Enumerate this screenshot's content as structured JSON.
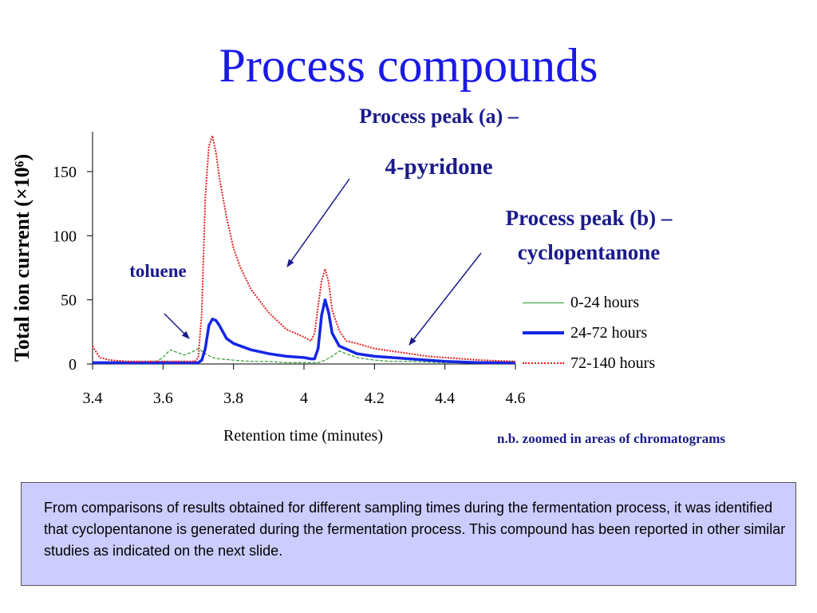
{
  "slide": {
    "title": "Process compounds",
    "note": "n.b. zoomed in areas of chromatograms",
    "info_text": "From comparisons of results obtained for different sampling times during the fermentation process, it was identified that cyclopentanone is generated during the fermentation process. This compound has been reported in other similar studies as indicated on the next slide."
  },
  "chart_data": {
    "type": "line",
    "xlabel": "Retention time (minutes)",
    "ylabel": "Total ion current (×10⁶)",
    "xlim": [
      3.4,
      4.6
    ],
    "ylim": [
      0,
      175
    ],
    "x_ticks": [
      "3.4",
      "3.6",
      "3.8",
      "4",
      "4.2",
      "4.4",
      "4.6"
    ],
    "y_ticks": [
      "0",
      "50",
      "100",
      "150"
    ],
    "grid": false,
    "legend_position": "right",
    "annotations": {
      "peak_a_line1": "Process peak (a) –",
      "peak_a_line2": "4-pyridone",
      "peak_b_line1": "Process peak (b) –",
      "peak_b_line2": "cyclopentanone",
      "toluene": "toluene"
    },
    "series": [
      {
        "name": "0-24 hours",
        "color": "#2e9a2e",
        "x": [
          3.4,
          3.45,
          3.5,
          3.55,
          3.58,
          3.6,
          3.62,
          3.64,
          3.66,
          3.68,
          3.7,
          3.72,
          3.74,
          3.76,
          3.8,
          3.85,
          3.9,
          3.95,
          4.0,
          4.04,
          4.06,
          4.08,
          4.1,
          4.12,
          4.15,
          4.2,
          4.25,
          4.3,
          4.4,
          4.5,
          4.6
        ],
        "y": [
          1,
          1,
          1,
          1,
          2,
          5,
          11,
          9,
          7,
          9,
          12,
          8,
          5,
          4,
          3,
          2,
          2,
          1,
          1,
          1,
          3,
          6,
          10,
          8,
          5,
          3,
          2,
          2,
          1,
          1,
          1
        ]
      },
      {
        "name": "24-72 hours",
        "color": "#1426e6",
        "x": [
          3.4,
          3.5,
          3.6,
          3.68,
          3.7,
          3.71,
          3.72,
          3.73,
          3.74,
          3.75,
          3.76,
          3.78,
          3.8,
          3.85,
          3.9,
          3.95,
          4.0,
          4.02,
          4.03,
          4.04,
          4.05,
          4.06,
          4.07,
          4.08,
          4.1,
          4.15,
          4.2,
          4.3,
          4.4,
          4.5,
          4.6
        ],
        "y": [
          1,
          1,
          1,
          1,
          1,
          3,
          12,
          30,
          35,
          34,
          30,
          20,
          16,
          11,
          8,
          6,
          5,
          4,
          4,
          12,
          38,
          50,
          40,
          24,
          14,
          8,
          6,
          4,
          2,
          1,
          1
        ]
      },
      {
        "name": "72-140 hours",
        "color": "#e62020",
        "x": [
          3.4,
          3.42,
          3.45,
          3.5,
          3.55,
          3.6,
          3.65,
          3.69,
          3.7,
          3.71,
          3.72,
          3.73,
          3.74,
          3.75,
          3.76,
          3.78,
          3.8,
          3.82,
          3.85,
          3.9,
          3.95,
          4.0,
          4.02,
          4.03,
          4.04,
          4.05,
          4.06,
          4.07,
          4.08,
          4.1,
          4.12,
          4.15,
          4.2,
          4.25,
          4.3,
          4.35,
          4.4,
          4.5,
          4.6
        ],
        "y": [
          14,
          5,
          3,
          2,
          2,
          2,
          2,
          2,
          5,
          40,
          130,
          170,
          178,
          165,
          145,
          115,
          90,
          75,
          58,
          40,
          27,
          21,
          18,
          24,
          45,
          65,
          74,
          64,
          42,
          26,
          18,
          16,
          12,
          10,
          8,
          6,
          5,
          3,
          2
        ]
      }
    ]
  }
}
